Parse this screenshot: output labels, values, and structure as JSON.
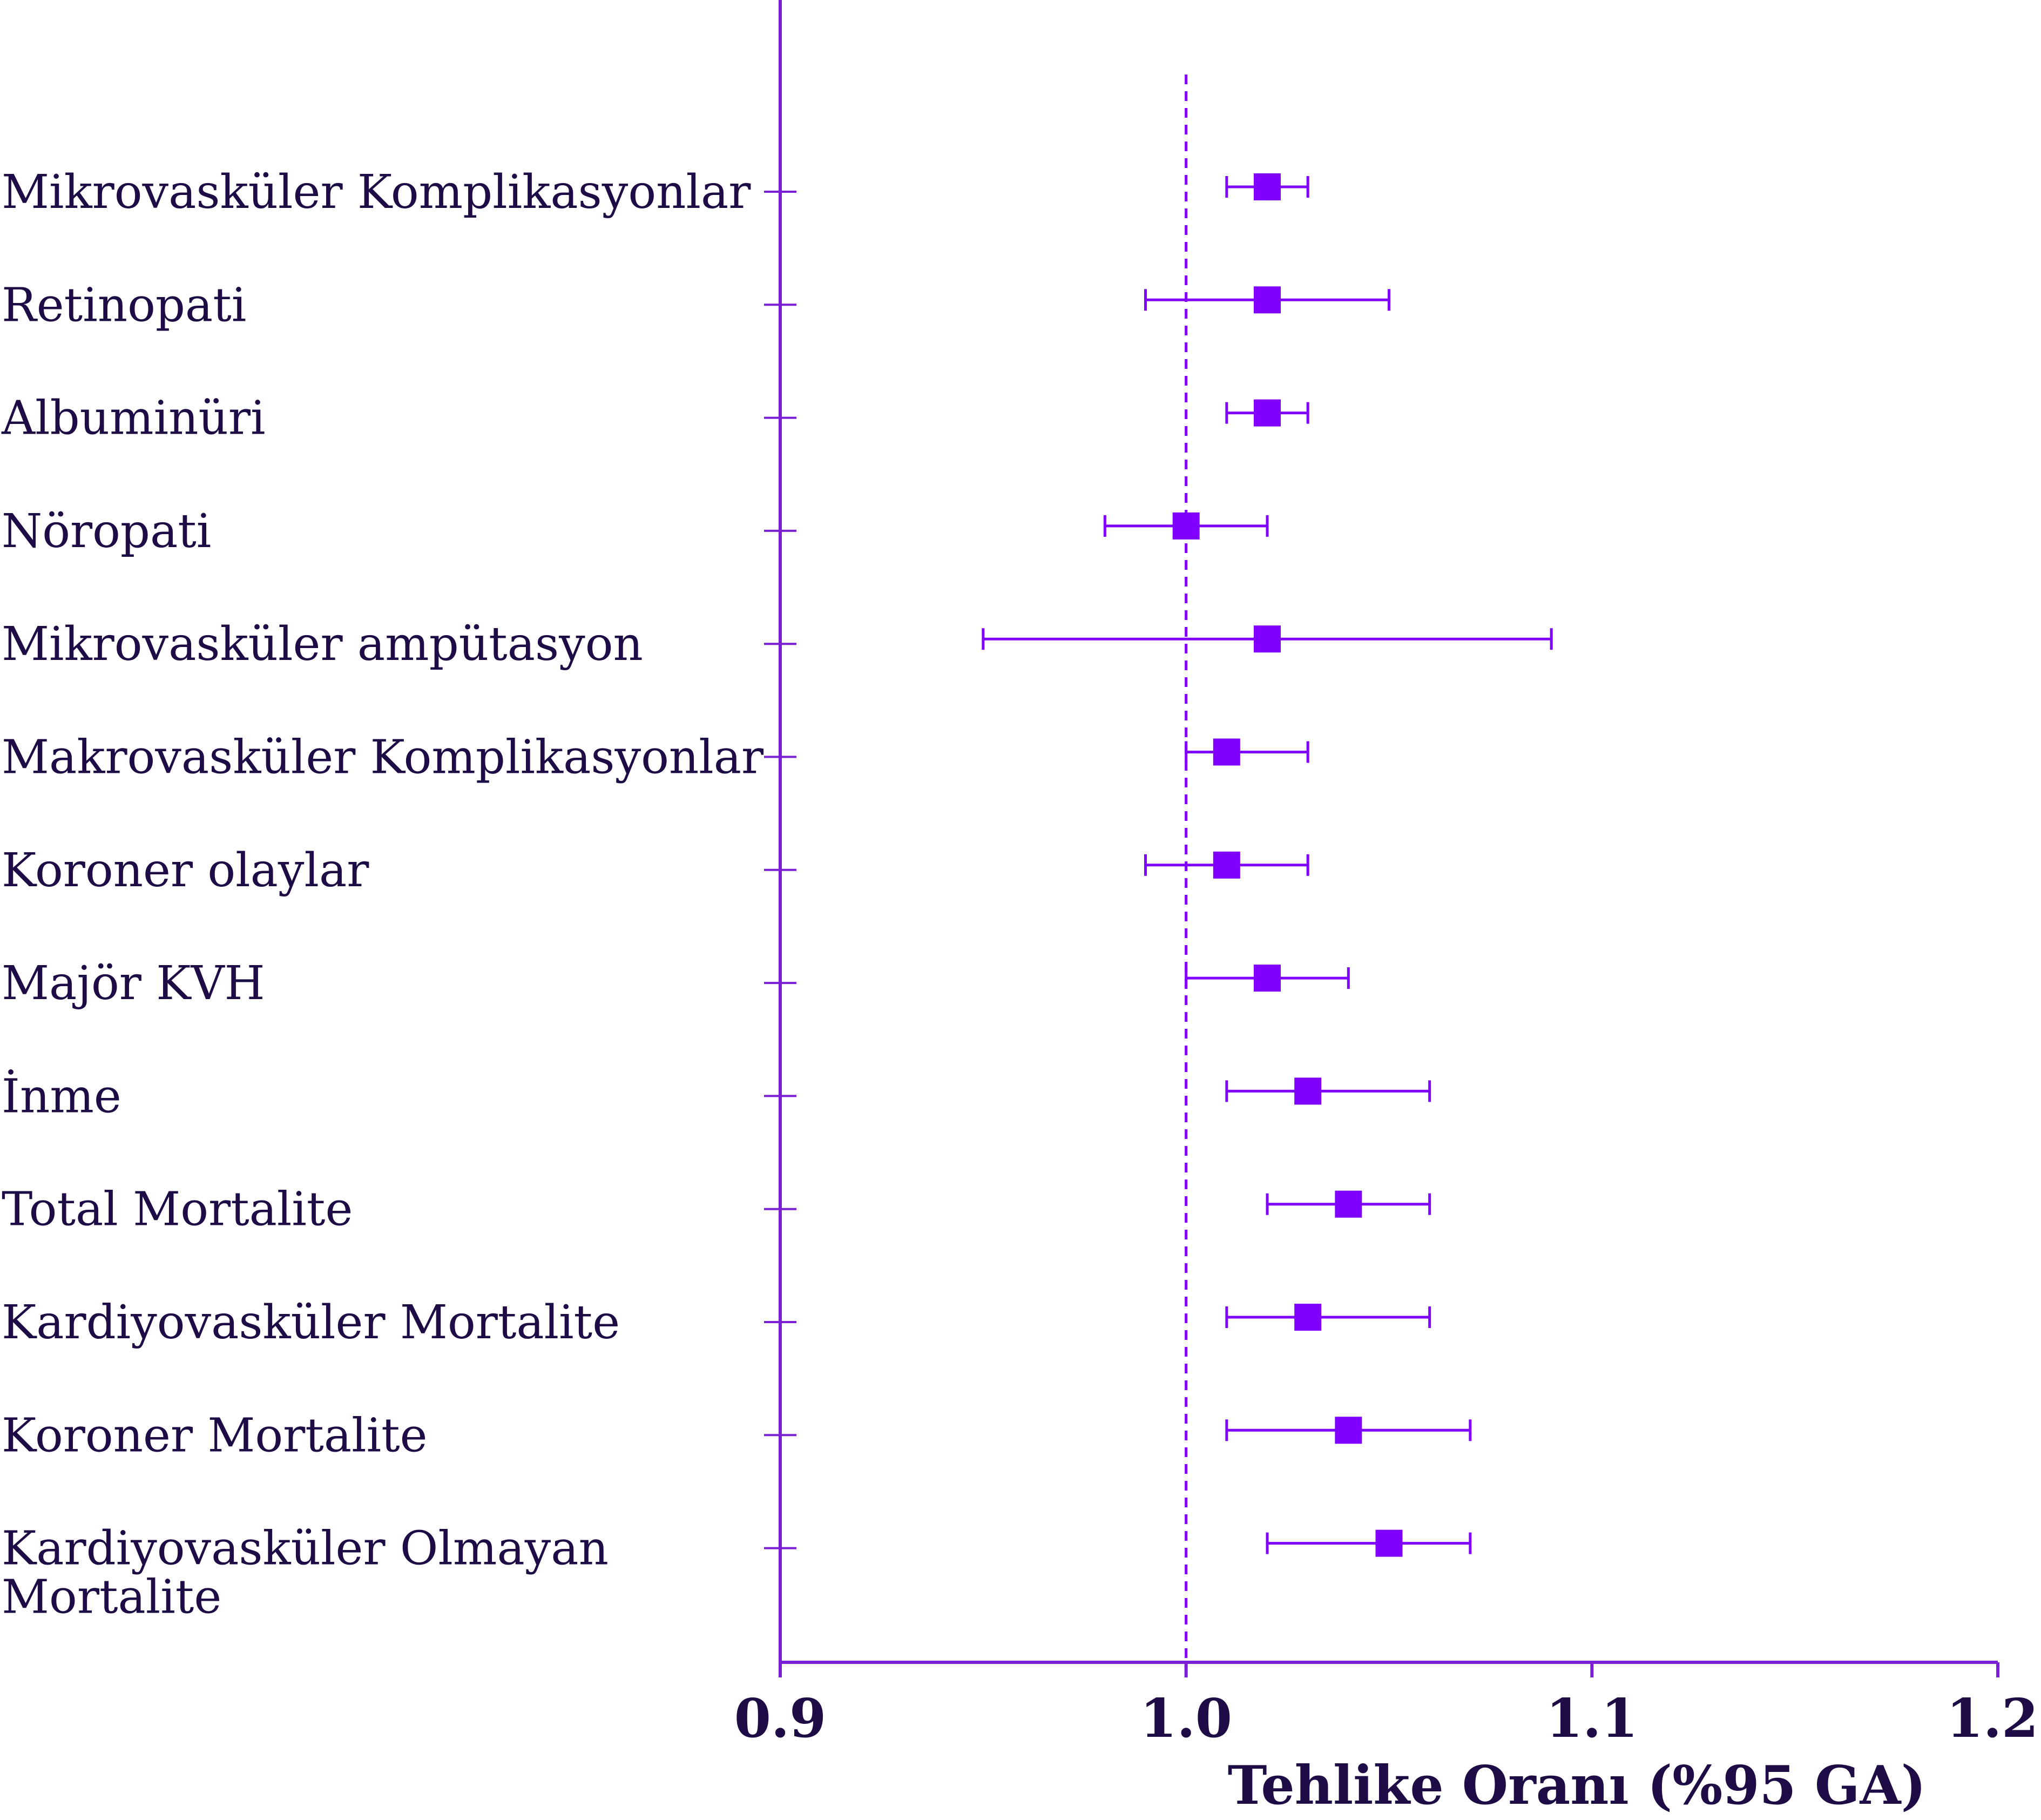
{
  "chart_data": {
    "type": "forest",
    "title": "",
    "xlabel": "Tehlike Oranı (%95 GA)",
    "ylabel": "",
    "xlim": [
      0.9,
      1.2
    ],
    "x_ticks": [
      "0.9",
      "1.0",
      "1.1",
      "1.2"
    ],
    "reference_line": 1.0,
    "grid": false,
    "colors": {
      "marker": "#8000ff",
      "line": "#8000ff",
      "axis": "#7a1fd6",
      "text": "#1d0c45"
    },
    "rows": [
      {
        "label_lines": [
          "Mikrovasküler Komplikasyonlar"
        ],
        "hr": 1.02,
        "ci_low": 1.01,
        "ci_high": 1.03
      },
      {
        "label_lines": [
          "Retinopati"
        ],
        "hr": 1.02,
        "ci_low": 0.99,
        "ci_high": 1.05
      },
      {
        "label_lines": [
          "Albuminüri"
        ],
        "hr": 1.02,
        "ci_low": 1.01,
        "ci_high": 1.03
      },
      {
        "label_lines": [
          "Nöropati"
        ],
        "hr": 1.0,
        "ci_low": 0.98,
        "ci_high": 1.02
      },
      {
        "label_lines": [
          "Mikrovasküler ampütasyon"
        ],
        "hr": 1.02,
        "ci_low": 0.95,
        "ci_high": 1.09
      },
      {
        "label_lines": [
          "Makrovasküler Komplikasyonlar"
        ],
        "hr": 1.01,
        "ci_low": 1.0,
        "ci_high": 1.03
      },
      {
        "label_lines": [
          "Koroner olaylar"
        ],
        "hr": 1.01,
        "ci_low": 0.99,
        "ci_high": 1.03
      },
      {
        "label_lines": [
          "Majör KVH"
        ],
        "hr": 1.02,
        "ci_low": 1.0,
        "ci_high": 1.04
      },
      {
        "label_lines": [
          "İnme"
        ],
        "hr": 1.03,
        "ci_low": 1.01,
        "ci_high": 1.06
      },
      {
        "label_lines": [
          "Total Mortalite"
        ],
        "hr": 1.04,
        "ci_low": 1.02,
        "ci_high": 1.06
      },
      {
        "label_lines": [
          "Kardiyovasküler Mortalite"
        ],
        "hr": 1.03,
        "ci_low": 1.01,
        "ci_high": 1.06
      },
      {
        "label_lines": [
          "Koroner Mortalite"
        ],
        "hr": 1.04,
        "ci_low": 1.01,
        "ci_high": 1.07
      },
      {
        "label_lines": [
          "Kardiyovasküler Olmayan",
          "Mortalite"
        ],
        "hr": 1.05,
        "ci_low": 1.02,
        "ci_high": 1.07
      }
    ]
  }
}
